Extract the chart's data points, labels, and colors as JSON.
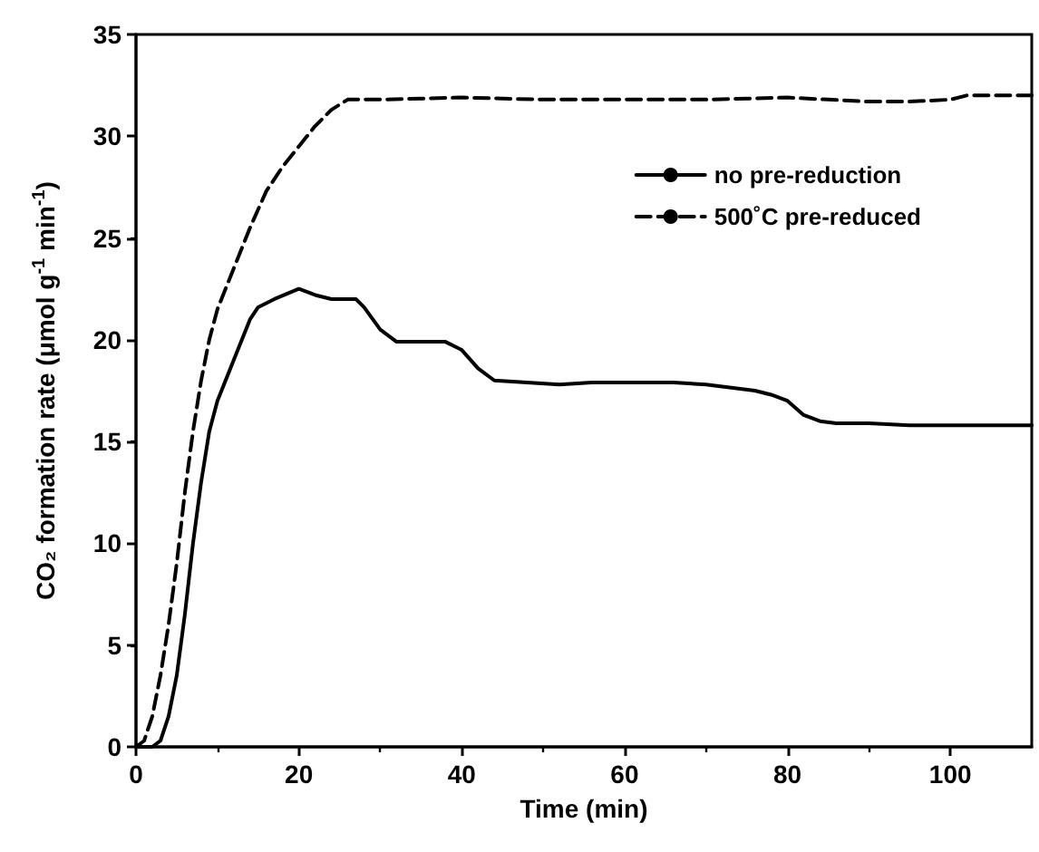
{
  "chart_data": {
    "type": "line",
    "xlabel": "Time (min)",
    "ylabel": "CO₂ formation rate (μmol g$^{-1}$ min$^{-1}$)",
    "xlim": [
      0,
      110
    ],
    "xticks": [
      0,
      20,
      40,
      60,
      80,
      100
    ],
    "ylim": [
      0,
      35
    ],
    "yticks": [
      0,
      5,
      10,
      15,
      20,
      25,
      30,
      35
    ],
    "grid": false,
    "legend": "top right",
    "marker": "none",
    "series": [
      {
        "name": "no pre-reduction",
        "color": "#000000",
        "line_style": "solid",
        "x": [
          0,
          2,
          3,
          4,
          5,
          6,
          7,
          8,
          9,
          10,
          12,
          14,
          15,
          17,
          20,
          22,
          24,
          27,
          28,
          30,
          32,
          35,
          38,
          40,
          42,
          44,
          48,
          52,
          56,
          60,
          66,
          70,
          76,
          78,
          80,
          82,
          84,
          86,
          90,
          95,
          110
        ],
        "values": [
          0,
          0,
          0.3,
          1.5,
          3.5,
          6.5,
          10,
          13,
          15.5,
          17,
          19,
          21,
          21.6,
          22,
          22.5,
          22.2,
          22,
          22,
          21.6,
          20.5,
          19.9,
          19.9,
          19.9,
          19.5,
          18.6,
          18,
          17.9,
          17.8,
          17.9,
          17.9,
          17.9,
          17.8,
          17.5,
          17.3,
          17,
          16.3,
          16,
          15.9,
          15.9,
          15.8,
          15.8
        ]
      },
      {
        "name": "500˚C pre-reduced",
        "color": "#000000",
        "line_style": "dashed",
        "x": [
          0,
          1,
          2,
          3,
          4,
          5,
          6,
          7,
          8,
          9,
          10,
          12,
          14,
          16,
          18,
          20,
          22,
          24,
          26,
          30,
          40,
          50,
          60,
          70,
          80,
          85,
          90,
          95,
          100,
          102,
          110
        ],
        "values": [
          0,
          0.3,
          1.5,
          3.5,
          6,
          9,
          12.5,
          15.5,
          18,
          20,
          21.5,
          23.5,
          25.5,
          27.3,
          28.5,
          29.5,
          30.5,
          31.3,
          31.8,
          31.8,
          31.9,
          31.8,
          31.8,
          31.8,
          31.9,
          31.8,
          31.7,
          31.7,
          31.8,
          32,
          32
        ]
      }
    ]
  }
}
